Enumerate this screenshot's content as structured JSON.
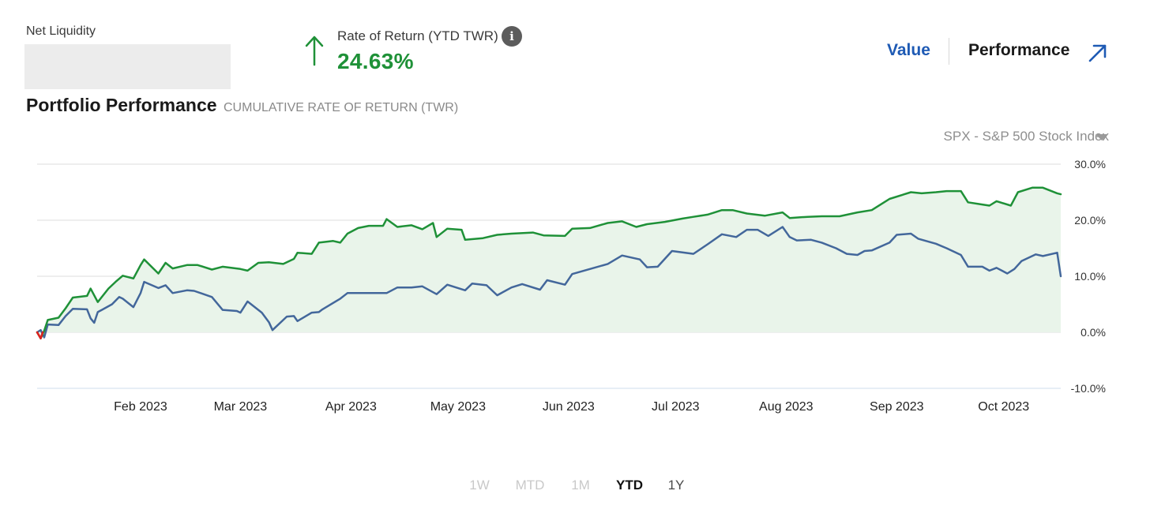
{
  "summary": {
    "net_liquidity_label": "Net Liquidity",
    "rate_label": "Rate of Return (YTD TWR)",
    "rate_value": "24.63%",
    "info_glyph": "i",
    "arrow_icon": "arrow-up-icon"
  },
  "view_tabs": {
    "value_label": "Value",
    "performance_label": "Performance",
    "active": "Performance",
    "expand_icon": "expand-arrow-icon"
  },
  "panel": {
    "title": "Portfolio Performance",
    "subtitle": "CUMULATIVE RATE OF RETURN (TWR)",
    "benchmark_label": "SPX - S&P 500 Stock Index",
    "dropdown_icon": "chevron-down-icon"
  },
  "colors": {
    "portfolio": "#1f9138",
    "benchmark": "#43679b",
    "fill": "#e9f4ea",
    "accent": "#1e5ab4",
    "negative": "#e02020",
    "grid": "#dedede",
    "zero_line": "#cfdcee"
  },
  "chart_data": {
    "type": "line",
    "title": "Portfolio Performance",
    "subtitle": "CUMULATIVE RATE OF RETURN (TWR)",
    "x_range": [
      "2023-01-03",
      "2023-10-17"
    ],
    "x_ticks": [
      {
        "label": "Feb 2023",
        "date": "2023-02-01"
      },
      {
        "label": "Mar 2023",
        "date": "2023-03-01"
      },
      {
        "label": "Apr 2023",
        "date": "2023-04-01"
      },
      {
        "label": "May 2023",
        "date": "2023-05-01"
      },
      {
        "label": "Jun 2023",
        "date": "2023-06-01"
      },
      {
        "label": "Jul 2023",
        "date": "2023-07-01"
      },
      {
        "label": "Aug 2023",
        "date": "2023-08-01"
      },
      {
        "label": "Sep 2023",
        "date": "2023-09-01"
      },
      {
        "label": "Oct 2023",
        "date": "2023-10-01"
      }
    ],
    "y_ticks": [
      {
        "label": "30.0%",
        "value": 30
      },
      {
        "label": "20.0%",
        "value": 20
      },
      {
        "label": "10.0%",
        "value": 10
      },
      {
        "label": "0.0%",
        "value": 0
      },
      {
        "label": "-10.0%",
        "value": -10
      }
    ],
    "ylim": [
      -10,
      30
    ],
    "grid": true,
    "series": [
      {
        "key": "portfolio",
        "fill": true,
        "points": [
          [
            "2023-01-03",
            0.0
          ],
          [
            "2023-01-04",
            -1.1
          ],
          [
            "2023-01-05",
            0.3
          ],
          [
            "2023-01-06",
            2.2
          ],
          [
            "2023-01-09",
            2.6
          ],
          [
            "2023-01-11",
            4.3
          ],
          [
            "2023-01-13",
            6.2
          ],
          [
            "2023-01-17",
            6.5
          ],
          [
            "2023-01-18",
            7.8
          ],
          [
            "2023-01-20",
            5.4
          ],
          [
            "2023-01-23",
            7.8
          ],
          [
            "2023-01-25",
            9.0
          ],
          [
            "2023-01-27",
            10.1
          ],
          [
            "2023-01-30",
            9.6
          ],
          [
            "2023-02-01",
            12.0
          ],
          [
            "2023-02-02",
            13.0
          ],
          [
            "2023-02-06",
            10.5
          ],
          [
            "2023-02-08",
            12.4
          ],
          [
            "2023-02-10",
            11.4
          ],
          [
            "2023-02-14",
            12.0
          ],
          [
            "2023-02-17",
            12.0
          ],
          [
            "2023-02-21",
            11.2
          ],
          [
            "2023-02-24",
            11.7
          ],
          [
            "2023-03-01",
            11.3
          ],
          [
            "2023-03-03",
            11.0
          ],
          [
            "2023-03-06",
            12.4
          ],
          [
            "2023-03-09",
            12.5
          ],
          [
            "2023-03-13",
            12.2
          ],
          [
            "2023-03-16",
            13.1
          ],
          [
            "2023-03-17",
            14.2
          ],
          [
            "2023-03-21",
            14.0
          ],
          [
            "2023-03-23",
            16.0
          ],
          [
            "2023-03-27",
            16.3
          ],
          [
            "2023-03-29",
            16.0
          ],
          [
            "2023-03-31",
            17.6
          ],
          [
            "2023-04-03",
            18.6
          ],
          [
            "2023-04-06",
            19.0
          ],
          [
            "2023-04-10",
            19.0
          ],
          [
            "2023-04-11",
            20.2
          ],
          [
            "2023-04-14",
            18.8
          ],
          [
            "2023-04-18",
            19.1
          ],
          [
            "2023-04-21",
            18.4
          ],
          [
            "2023-04-24",
            19.5
          ],
          [
            "2023-04-25",
            17.0
          ],
          [
            "2023-04-28",
            18.5
          ],
          [
            "2023-05-02",
            18.3
          ],
          [
            "2023-05-03",
            16.5
          ],
          [
            "2023-05-08",
            16.8
          ],
          [
            "2023-05-12",
            17.4
          ],
          [
            "2023-05-16",
            17.6
          ],
          [
            "2023-05-22",
            17.8
          ],
          [
            "2023-05-25",
            17.3
          ],
          [
            "2023-05-31",
            17.2
          ],
          [
            "2023-06-02",
            18.5
          ],
          [
            "2023-06-07",
            18.6
          ],
          [
            "2023-06-12",
            19.5
          ],
          [
            "2023-06-16",
            19.8
          ],
          [
            "2023-06-20",
            18.8
          ],
          [
            "2023-06-23",
            19.3
          ],
          [
            "2023-06-28",
            19.7
          ],
          [
            "2023-07-03",
            20.3
          ],
          [
            "2023-07-06",
            20.6
          ],
          [
            "2023-07-10",
            21.0
          ],
          [
            "2023-07-14",
            21.8
          ],
          [
            "2023-07-17",
            21.8
          ],
          [
            "2023-07-21",
            21.2
          ],
          [
            "2023-07-26",
            20.8
          ],
          [
            "2023-07-31",
            21.4
          ],
          [
            "2023-08-02",
            20.4
          ],
          [
            "2023-08-07",
            20.6
          ],
          [
            "2023-08-11",
            20.7
          ],
          [
            "2023-08-16",
            20.7
          ],
          [
            "2023-08-21",
            21.4
          ],
          [
            "2023-08-25",
            21.8
          ],
          [
            "2023-08-30",
            23.8
          ],
          [
            "2023-09-05",
            25.0
          ],
          [
            "2023-09-08",
            24.8
          ],
          [
            "2023-09-12",
            25.0
          ],
          [
            "2023-09-15",
            25.2
          ],
          [
            "2023-09-19",
            25.2
          ],
          [
            "2023-09-21",
            23.2
          ],
          [
            "2023-09-25",
            22.8
          ],
          [
            "2023-09-27",
            22.6
          ],
          [
            "2023-09-29",
            23.4
          ],
          [
            "2023-10-03",
            22.6
          ],
          [
            "2023-10-05",
            25.0
          ],
          [
            "2023-10-09",
            25.8
          ],
          [
            "2023-10-12",
            25.8
          ],
          [
            "2023-10-16",
            24.8
          ],
          [
            "2023-10-17",
            24.63
          ]
        ]
      },
      {
        "key": "benchmark",
        "name": "SPX - S&P 500 Stock Index",
        "fill": false,
        "points": [
          [
            "2023-01-03",
            0.0
          ],
          [
            "2023-01-04",
            0.4
          ],
          [
            "2023-01-05",
            -0.9
          ],
          [
            "2023-01-06",
            1.4
          ],
          [
            "2023-01-09",
            1.3
          ],
          [
            "2023-01-11",
            2.9
          ],
          [
            "2023-01-13",
            4.2
          ],
          [
            "2023-01-17",
            4.1
          ],
          [
            "2023-01-18",
            2.5
          ],
          [
            "2023-01-19",
            1.7
          ],
          [
            "2023-01-20",
            3.6
          ],
          [
            "2023-01-24",
            5.0
          ],
          [
            "2023-01-26",
            6.3
          ],
          [
            "2023-01-27",
            6.0
          ],
          [
            "2023-01-30",
            4.5
          ],
          [
            "2023-02-01",
            7.0
          ],
          [
            "2023-02-02",
            9.0
          ],
          [
            "2023-02-06",
            7.9
          ],
          [
            "2023-02-08",
            8.4
          ],
          [
            "2023-02-10",
            7.0
          ],
          [
            "2023-02-14",
            7.5
          ],
          [
            "2023-02-16",
            7.4
          ],
          [
            "2023-02-21",
            6.3
          ],
          [
            "2023-02-24",
            4.0
          ],
          [
            "2023-02-28",
            3.8
          ],
          [
            "2023-03-01",
            3.5
          ],
          [
            "2023-03-03",
            5.5
          ],
          [
            "2023-03-07",
            3.5
          ],
          [
            "2023-03-09",
            1.8
          ],
          [
            "2023-03-10",
            0.4
          ],
          [
            "2023-03-14",
            2.8
          ],
          [
            "2023-03-16",
            2.9
          ],
          [
            "2023-03-17",
            2.0
          ],
          [
            "2023-03-21",
            3.5
          ],
          [
            "2023-03-23",
            3.6
          ],
          [
            "2023-03-24",
            4.1
          ],
          [
            "2023-03-29",
            6.0
          ],
          [
            "2023-03-31",
            7.0
          ],
          [
            "2023-04-05",
            7.0
          ],
          [
            "2023-04-11",
            7.0
          ],
          [
            "2023-04-14",
            8.0
          ],
          [
            "2023-04-18",
            8.0
          ],
          [
            "2023-04-21",
            8.2
          ],
          [
            "2023-04-25",
            6.8
          ],
          [
            "2023-04-28",
            8.5
          ],
          [
            "2023-05-03",
            7.5
          ],
          [
            "2023-05-05",
            8.7
          ],
          [
            "2023-05-09",
            8.4
          ],
          [
            "2023-05-12",
            6.6
          ],
          [
            "2023-05-16",
            8.0
          ],
          [
            "2023-05-19",
            8.6
          ],
          [
            "2023-05-24",
            7.6
          ],
          [
            "2023-05-26",
            9.3
          ],
          [
            "2023-05-31",
            8.5
          ],
          [
            "2023-06-02",
            10.4
          ],
          [
            "2023-06-07",
            11.3
          ],
          [
            "2023-06-12",
            12.2
          ],
          [
            "2023-06-16",
            13.7
          ],
          [
            "2023-06-21",
            13.0
          ],
          [
            "2023-06-23",
            11.6
          ],
          [
            "2023-06-26",
            11.7
          ],
          [
            "2023-06-30",
            14.5
          ],
          [
            "2023-07-06",
            14.0
          ],
          [
            "2023-07-10",
            15.7
          ],
          [
            "2023-07-14",
            17.5
          ],
          [
            "2023-07-18",
            17.0
          ],
          [
            "2023-07-21",
            18.3
          ],
          [
            "2023-07-24",
            18.3
          ],
          [
            "2023-07-27",
            17.2
          ],
          [
            "2023-07-31",
            18.8
          ],
          [
            "2023-08-02",
            17.0
          ],
          [
            "2023-08-04",
            16.4
          ],
          [
            "2023-08-08",
            16.5
          ],
          [
            "2023-08-11",
            16.0
          ],
          [
            "2023-08-15",
            15.0
          ],
          [
            "2023-08-18",
            14.0
          ],
          [
            "2023-08-21",
            13.8
          ],
          [
            "2023-08-23",
            14.5
          ],
          [
            "2023-08-25",
            14.6
          ],
          [
            "2023-08-30",
            16.0
          ],
          [
            "2023-09-01",
            17.4
          ],
          [
            "2023-09-05",
            17.6
          ],
          [
            "2023-09-07",
            16.7
          ],
          [
            "2023-09-12",
            15.8
          ],
          [
            "2023-09-15",
            15.0
          ],
          [
            "2023-09-19",
            13.8
          ],
          [
            "2023-09-21",
            11.7
          ],
          [
            "2023-09-25",
            11.7
          ],
          [
            "2023-09-27",
            11.0
          ],
          [
            "2023-09-29",
            11.5
          ],
          [
            "2023-10-02",
            10.5
          ],
          [
            "2023-10-04",
            11.3
          ],
          [
            "2023-10-06",
            12.7
          ],
          [
            "2023-10-10",
            13.9
          ],
          [
            "2023-10-12",
            13.6
          ],
          [
            "2023-10-16",
            14.2
          ],
          [
            "2023-10-17",
            10.0
          ]
        ]
      }
    ]
  },
  "time_ranges": [
    {
      "label": "1W",
      "state": "disabled"
    },
    {
      "label": "MTD",
      "state": "disabled"
    },
    {
      "label": "1M",
      "state": "disabled"
    },
    {
      "label": "YTD",
      "state": "active"
    },
    {
      "label": "1Y",
      "state": "enabled"
    }
  ]
}
